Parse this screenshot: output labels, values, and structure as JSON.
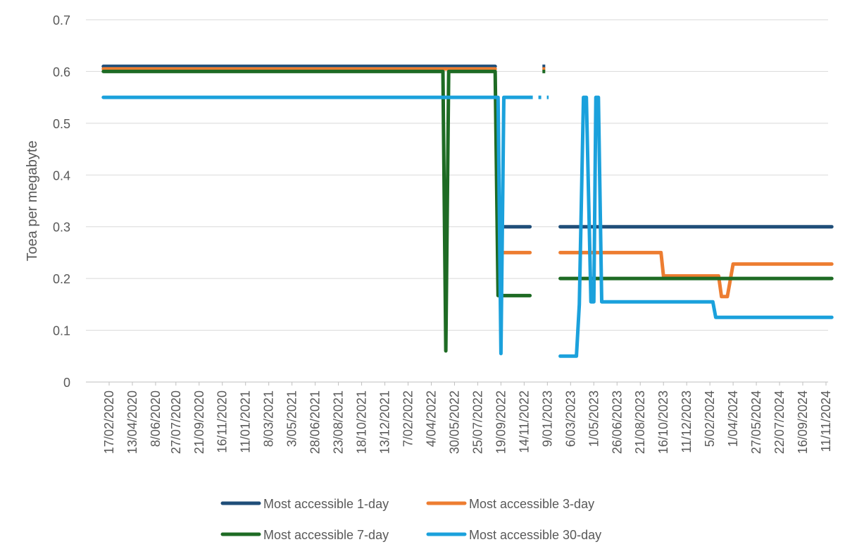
{
  "chart_data": {
    "type": "line",
    "title": "",
    "xlabel": "",
    "ylabel": "Toea per megabyte",
    "ylim": [
      0,
      0.7
    ],
    "yticks": [
      "0",
      "0.1",
      "0.2",
      "0.3",
      "0.4",
      "0.5",
      "0.6",
      "0.7"
    ],
    "x_tick_labels": [
      "17/02/2020",
      "13/04/2020",
      "8/06/2020",
      "27/07/2020",
      "21/09/2020",
      "16/11/2020",
      "11/01/2021",
      "8/03/2021",
      "3/05/2021",
      "28/06/2021",
      "23/08/2021",
      "18/10/2021",
      "13/12/2021",
      "7/02/2022",
      "4/04/2022",
      "30/05/2022",
      "25/07/2022",
      "19/09/2022",
      "14/11/2022",
      "9/01/2023",
      "6/03/2023",
      "1/05/2023",
      "26/06/2023",
      "21/08/2023",
      "16/10/2023",
      "11/12/2023",
      "5/02/2024",
      "1/04/2024",
      "27/05/2024",
      "22/07/2024",
      "16/09/2024",
      "11/11/2024"
    ],
    "grid": true,
    "legend_position": "bottom",
    "series": [
      {
        "name": "Most accessible 1-day",
        "color": "#1f4e79",
        "segments": [
          {
            "style": "solid",
            "points": [
              [
                "3/02/2020",
                0.61
              ],
              [
                "8/05/2022",
                0.61
              ],
              [
                "8/05/2022",
                0.61
              ],
              [
                "14/05/2022",
                0.61
              ],
              [
                "5/09/2022",
                0.61
              ]
            ]
          },
          {
            "style": "solid",
            "points": [
              [
                "19/09/2022",
                0.3
              ],
              [
                "28/11/2022",
                0.3
              ]
            ]
          },
          {
            "style": "dotted",
            "points": [
              [
                "28/12/2022",
                0.61
              ],
              [
                "12/01/2023",
                0.61
              ]
            ]
          },
          {
            "style": "solid",
            "points": [
              [
                "9/02/2023",
                0.3
              ],
              [
                "25/11/2024",
                0.3
              ]
            ]
          }
        ]
      },
      {
        "name": "Most accessible 3-day",
        "color": "#ed7d31",
        "segments": [
          {
            "style": "solid",
            "points": [
              [
                "3/02/2020",
                0.605
              ],
              [
                "8/05/2022",
                0.605
              ],
              [
                "14/05/2022",
                0.605
              ],
              [
                "5/09/2022",
                0.605
              ]
            ]
          },
          {
            "style": "solid",
            "points": [
              [
                "19/09/2022",
                0.25
              ],
              [
                "28/11/2022",
                0.25
              ]
            ]
          },
          {
            "style": "dotted",
            "points": [
              [
                "28/12/2022",
                0.605
              ],
              [
                "12/01/2023",
                0.605
              ]
            ]
          },
          {
            "style": "solid",
            "points": [
              [
                "9/02/2023",
                0.25
              ],
              [
                "10/10/2023",
                0.25
              ],
              [
                "16/10/2023",
                0.205
              ],
              [
                "26/02/2024",
                0.205
              ],
              [
                "4/03/2024",
                0.165
              ],
              [
                "18/03/2024",
                0.165
              ],
              [
                "1/04/2024",
                0.228
              ],
              [
                "25/11/2024",
                0.228
              ]
            ]
          }
        ]
      },
      {
        "name": "Most accessible 7-day",
        "color": "#1e6b24",
        "segments": [
          {
            "style": "solid",
            "points": [
              [
                "3/02/2020",
                0.6
              ],
              [
                "2/05/2022",
                0.6
              ],
              [
                "9/05/2022",
                0.06
              ],
              [
                "16/05/2022",
                0.6
              ],
              [
                "5/09/2022",
                0.6
              ],
              [
                "12/09/2022",
                0.167
              ],
              [
                "28/11/2022",
                0.167
              ]
            ]
          },
          {
            "style": "dotted",
            "points": [
              [
                "28/12/2022",
                0.6
              ],
              [
                "12/01/2023",
                0.6
              ]
            ]
          },
          {
            "style": "solid",
            "points": [
              [
                "9/02/2023",
                0.2
              ],
              [
                "25/11/2024",
                0.2
              ]
            ]
          }
        ]
      },
      {
        "name": "Most accessible 30-day",
        "color": "#1ba1dc",
        "segments": [
          {
            "style": "solid",
            "points": [
              [
                "3/02/2020",
                0.55
              ],
              [
                "12/09/2022",
                0.55
              ],
              [
                "19/09/2022",
                0.055
              ],
              [
                "26/09/2022",
                0.55
              ],
              [
                "28/11/2022",
                0.55
              ]
            ]
          },
          {
            "style": "dotted",
            "points": [
              [
                "28/11/2022",
                0.55
              ],
              [
                "12/01/2023",
                0.55
              ]
            ]
          },
          {
            "style": "solid",
            "points": [
              [
                "9/02/2023",
                0.05
              ],
              [
                "20/03/2023",
                0.05
              ],
              [
                "27/03/2023",
                0.15
              ],
              [
                "6/04/2023",
                0.55
              ],
              [
                "13/04/2023",
                0.55
              ],
              [
                "24/04/2023",
                0.155
              ],
              [
                "1/05/2023",
                0.155
              ],
              [
                "6/05/2023",
                0.55
              ],
              [
                "12/05/2023",
                0.55
              ],
              [
                "20/05/2023",
                0.155
              ],
              [
                "12/02/2024",
                0.155
              ],
              [
                "19/02/2024",
                0.125
              ],
              [
                "25/11/2024",
                0.125
              ]
            ]
          }
        ]
      }
    ]
  }
}
